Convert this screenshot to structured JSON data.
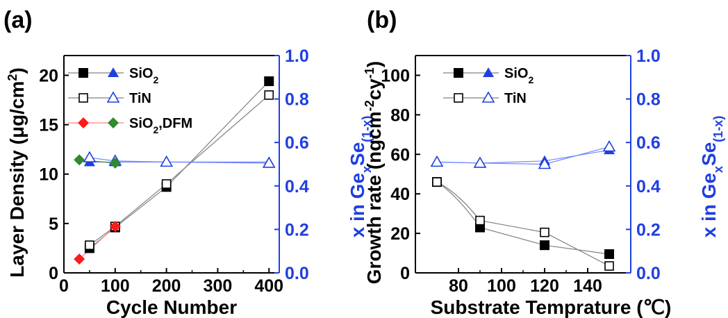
{
  "chart_data": [
    {
      "panel": "(a)",
      "type": "scatter",
      "xlabel": "Cycle Number",
      "ylabel": "Layer Density (μg/cm²)",
      "ylabel_parts": {
        "pre": "Layer Density (μg/cm",
        "sup": "2",
        "post": ")"
      },
      "y2label_parts": {
        "pre": "x in Ge",
        "sub1": "x",
        "mid": "Se",
        "sub2": "(1-x)"
      },
      "xlim": [
        0,
        420
      ],
      "ylim": [
        0,
        22
      ],
      "y2lim": [
        0.0,
        1.0
      ],
      "xticks": [
        "0",
        "100",
        "200",
        "300",
        "400"
      ],
      "yticks": [
        "0",
        "5",
        "10",
        "15",
        "20"
      ],
      "y2ticks": [
        "0.0",
        "0.2",
        "0.4",
        "0.6",
        "0.8",
        "1.0"
      ],
      "legend_position": "top-left",
      "legend": [
        {
          "label": "SiO",
          "sub": "2",
          "tail": ""
        },
        {
          "label": "TiN",
          "sub": "",
          "tail": ""
        },
        {
          "label": "SiO",
          "sub": "2",
          "tail": ",DFM"
        }
      ],
      "series": [
        {
          "legend_index": 0,
          "axis": "left",
          "marker": "square-filled",
          "color": "#000000",
          "line_color": "#808080",
          "x": [
            50,
            100,
            200,
            400
          ],
          "y": [
            2.5,
            4.6,
            8.7,
            19.4
          ]
        },
        {
          "legend_index": 1,
          "axis": "left",
          "marker": "square-open",
          "color": "#000000",
          "line_color": "#808080",
          "x": [
            50,
            100,
            200,
            400
          ],
          "y": [
            2.8,
            4.7,
            9.0,
            18.0
          ]
        },
        {
          "legend_index": 2,
          "axis": "left",
          "marker": "diamond-filled",
          "color": "#ff1a1a",
          "line_color": "#ff8080",
          "x": [
            30,
            100
          ],
          "y": [
            1.4,
            4.7
          ]
        },
        {
          "legend_index": 0,
          "axis": "right",
          "marker": "triangle-filled",
          "color": "#1f3fe0",
          "line_color": "#6f86ff",
          "x": [
            50,
            100,
            200,
            400
          ],
          "y": [
            0.51,
            0.51,
            0.51,
            0.51
          ]
        },
        {
          "legend_index": 1,
          "axis": "right",
          "marker": "triangle-open",
          "color": "#1f3fe0",
          "line_color": "#6f86ff",
          "x": [
            50,
            100,
            200,
            400
          ],
          "y": [
            0.53,
            0.515,
            0.51,
            0.505
          ]
        },
        {
          "legend_index": 2,
          "axis": "right",
          "marker": "diamond-filled",
          "color": "#2e8b2e",
          "line_color": "#2e8b2e",
          "x": [
            30,
            100
          ],
          "y": [
            0.52,
            0.505
          ]
        }
      ]
    },
    {
      "panel": "(b)",
      "type": "scatter",
      "xlabel": "Substrate Temprature (℃)",
      "ylabel": "Growth rate (ngcm⁻²cy⁻¹)",
      "ylabel_parts": {
        "pre": "Growth rate (ngcm",
        "sup1": "-2",
        "mid": "cy",
        "sup2": "-1",
        "post": ")"
      },
      "y2label_parts": {
        "pre": "x in Ge",
        "sub1": "x",
        "mid": "Se",
        "sub2": "(1-x)"
      },
      "xlim": [
        60,
        160
      ],
      "ylim": [
        0,
        110
      ],
      "y2lim": [
        0.0,
        1.0
      ],
      "xticks": [
        "80",
        "100",
        "120",
        "140"
      ],
      "yticks": [
        "0",
        "20",
        "40",
        "60",
        "80",
        "100"
      ],
      "y2ticks": [
        "0.0",
        "0.2",
        "0.4",
        "0.6",
        "0.8",
        "1.0"
      ],
      "legend_position": "top-left",
      "legend": [
        {
          "label": "SiO",
          "sub": "2",
          "tail": ""
        },
        {
          "label": "TiN",
          "sub": "",
          "tail": ""
        }
      ],
      "series": [
        {
          "legend_index": 0,
          "axis": "left",
          "marker": "square-filled",
          "color": "#000000",
          "line_color": "#808080",
          "x": [
            70,
            90,
            120,
            150
          ],
          "y": [
            46,
            23,
            14,
            9.5
          ]
        },
        {
          "legend_index": 1,
          "axis": "left",
          "marker": "square-open",
          "color": "#000000",
          "line_color": "#808080",
          "x": [
            70,
            90,
            120,
            150
          ],
          "y": [
            46,
            26.5,
            20.5,
            3.5
          ]
        },
        {
          "legend_index": 0,
          "axis": "right",
          "marker": "triangle-filled",
          "color": "#1f3fe0",
          "line_color": "#6f86ff",
          "x": [
            70,
            90,
            120,
            150
          ],
          "y": [
            0.51,
            0.505,
            0.515,
            0.565
          ]
        },
        {
          "legend_index": 1,
          "axis": "right",
          "marker": "triangle-open",
          "color": "#1f3fe0",
          "line_color": "#6f86ff",
          "x": [
            70,
            90,
            120,
            150
          ],
          "y": [
            0.51,
            0.505,
            0.5,
            0.58
          ]
        }
      ]
    }
  ]
}
